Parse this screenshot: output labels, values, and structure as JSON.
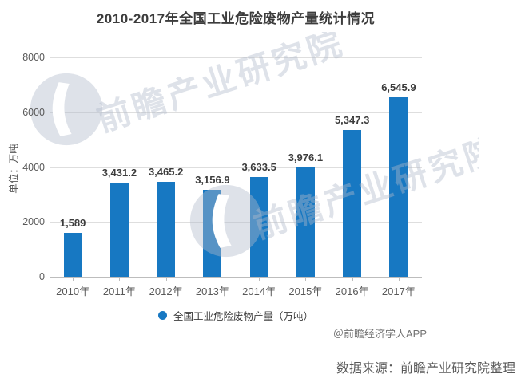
{
  "chart_data": {
    "type": "bar",
    "title": "2010-2017年全国工业危险废物产量统计情况",
    "ylabel": "单位：万吨",
    "categories": [
      "2010年",
      "2011年",
      "2012年",
      "2013年",
      "2014年",
      "2015年",
      "2016年",
      "2017年"
    ],
    "values": [
      1589,
      3431.2,
      3465.2,
      3156.9,
      3633.5,
      3976.1,
      5347.3,
      6545.9
    ],
    "value_labels": [
      "1,589",
      "3,431.2",
      "3,465.2",
      "3,156.9",
      "3,633.5",
      "3,976.1",
      "5,347.3",
      "6,545.9"
    ],
    "series_name": "全国工业危险废物产量（万吨）",
    "ylim": [
      0,
      8000
    ],
    "yticks": [
      0,
      2000,
      4000,
      6000,
      8000
    ],
    "grid": true,
    "legend_position": "bottom",
    "bar_color": "#1778c2"
  },
  "legend": {
    "label": "全国工业危险废物产量（万吨）"
  },
  "credits": {
    "app": "＠前瞻经济学人APP",
    "source": "数据来源：前瞻产业研究院整理"
  },
  "watermark": {
    "text": "前瞻产业研究院"
  },
  "colors": {
    "bar": "#1778c2",
    "title": "#3c3c3c",
    "axis_text": "#595959",
    "gridline": "#dedede"
  }
}
